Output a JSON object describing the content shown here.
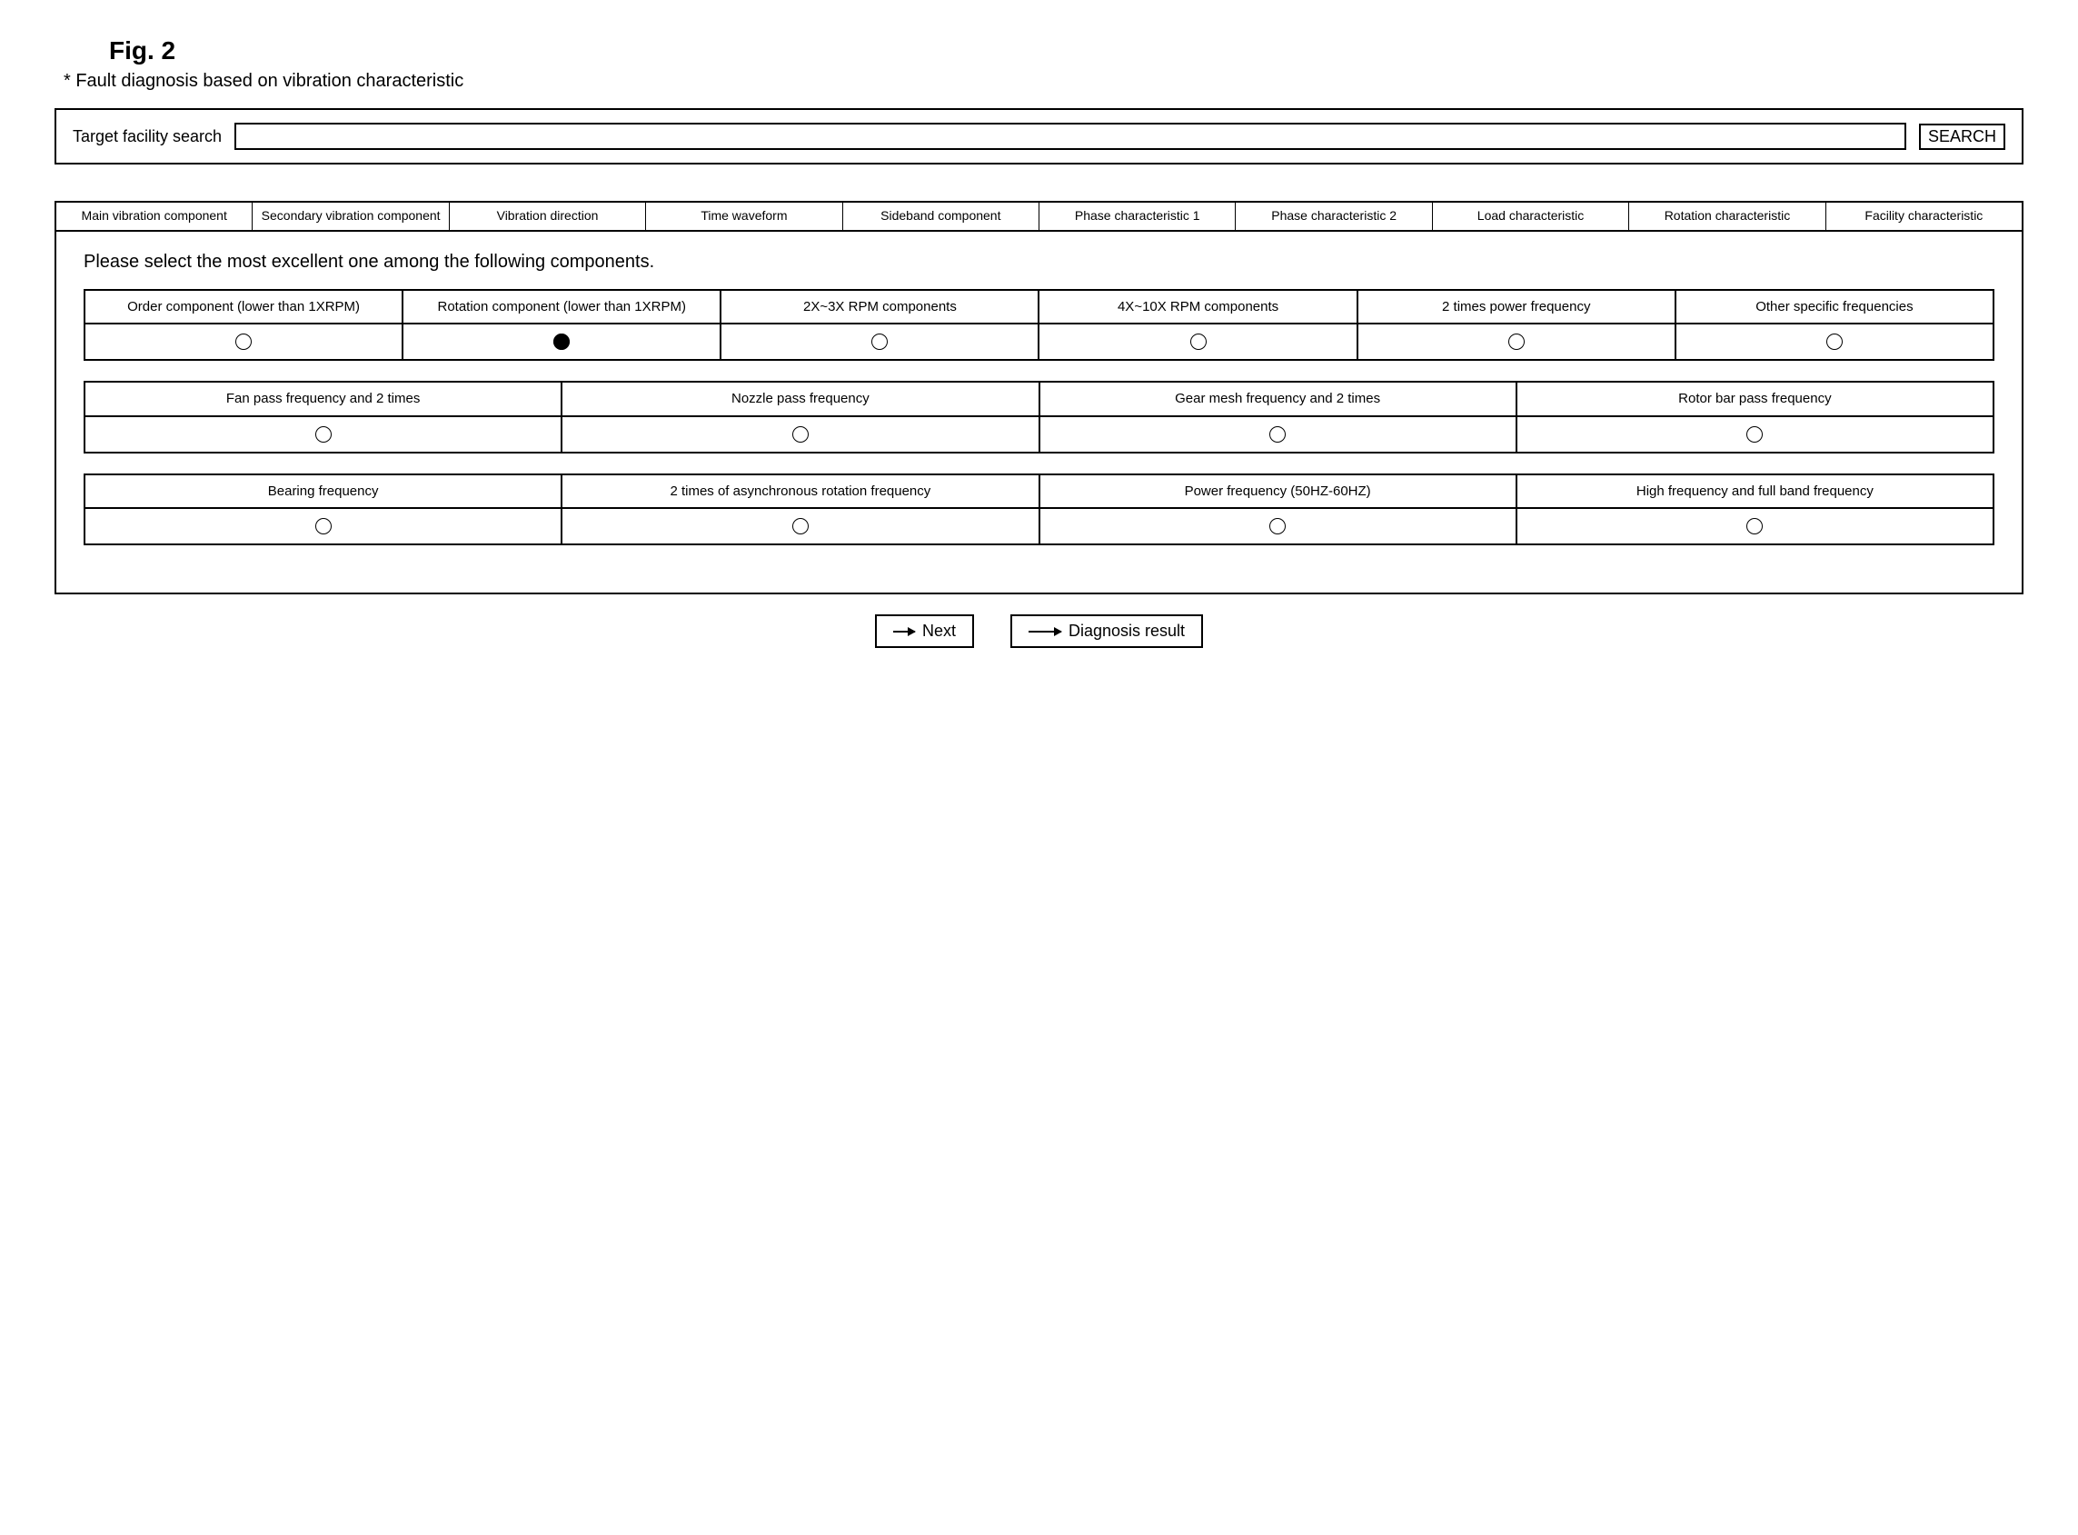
{
  "figure": {
    "label": "Fig. 2",
    "subtitle": "* Fault diagnosis based on vibration characteristic"
  },
  "search": {
    "label": "Target facility search",
    "value": "",
    "button": "SEARCH"
  },
  "tabs": [
    "Main vibration component",
    "Secondary vibration component",
    "Vibration direction",
    "Time waveform",
    "Sideband component",
    "Phase characteristic 1",
    "Phase characteristic 2",
    "Load characteristic",
    "Rotation characteristic",
    "Facility characteristic"
  ],
  "instruction": "Please select the most excellent one among the following components.",
  "optionRows": [
    {
      "cols": 6,
      "options": [
        {
          "label": "Order component (lower than 1XRPM)",
          "selected": false
        },
        {
          "label": "Rotation component (lower than 1XRPM)",
          "selected": true
        },
        {
          "label": "2X~3X RPM components",
          "selected": false
        },
        {
          "label": "4X~10X RPM components",
          "selected": false
        },
        {
          "label": "2 times power frequency",
          "selected": false
        },
        {
          "label": "Other specific frequencies",
          "selected": false
        }
      ]
    },
    {
      "cols": 4,
      "options": [
        {
          "label": "Fan pass frequency and 2 times",
          "selected": false
        },
        {
          "label": "Nozzle pass frequency",
          "selected": false
        },
        {
          "label": "Gear mesh frequency and 2 times",
          "selected": false
        },
        {
          "label": "Rotor bar pass frequency",
          "selected": false
        }
      ]
    },
    {
      "cols": 4,
      "options": [
        {
          "label": "Bearing frequency",
          "selected": false
        },
        {
          "label": "2 times of asynchronous rotation frequency",
          "selected": false
        },
        {
          "label": "Power frequency (50HZ-60HZ)",
          "selected": false
        },
        {
          "label": "High frequency and full band frequency",
          "selected": false
        }
      ]
    }
  ],
  "nav": {
    "next": "Next",
    "result": "Diagnosis result"
  }
}
